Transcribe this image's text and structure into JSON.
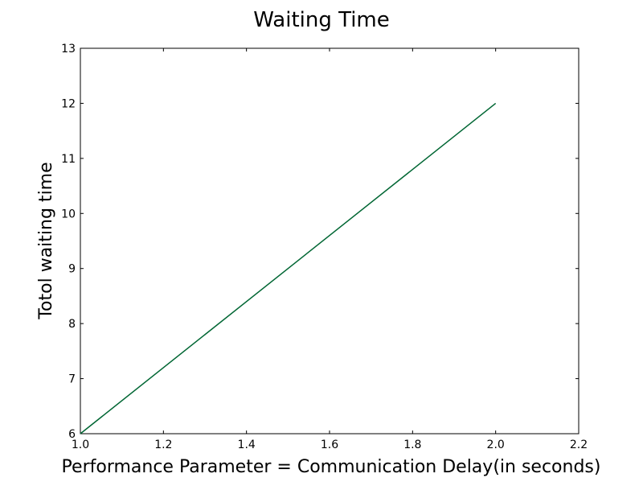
{
  "chart_data": {
    "type": "line",
    "title": "Waiting Time",
    "xlabel": "Performance Parameter = Communication Delay(in seconds)",
    "ylabel": "Totol waiting time",
    "xlim": [
      1.0,
      2.2
    ],
    "ylim": [
      6,
      13
    ],
    "xticks": [
      "1.0",
      "1.2",
      "1.4",
      "1.6",
      "1.8",
      "2.0",
      "2.2"
    ],
    "yticks": [
      "6",
      "7",
      "8",
      "9",
      "10",
      "11",
      "12",
      "13"
    ],
    "grid": false,
    "series": [
      {
        "color": "#006633",
        "x": [
          1.0,
          2.0
        ],
        "y": [
          6,
          12
        ]
      }
    ]
  }
}
